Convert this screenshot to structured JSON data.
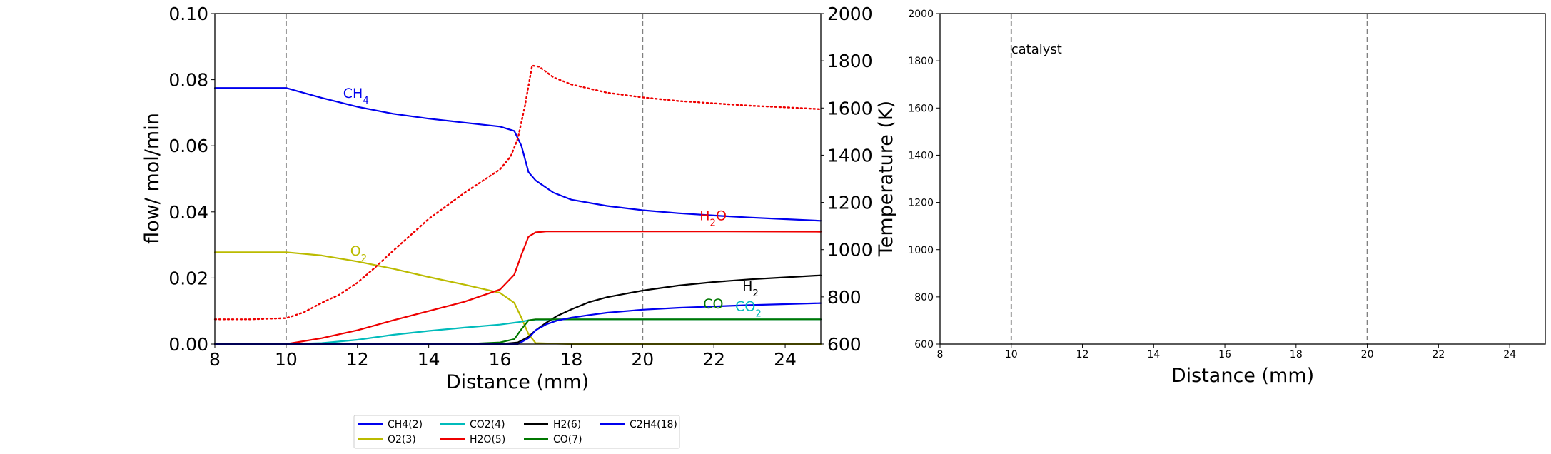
{
  "chart_data": [
    {
      "type": "line",
      "xlabel": "Distance (mm)",
      "ylabel": "flow/ mol/min",
      "y2label": "Temperature (K)",
      "xlim": [
        8,
        25
      ],
      "ylim": [
        0,
        0.1
      ],
      "y2lim": [
        600,
        2000
      ],
      "xticks": [
        "8",
        "10",
        "12",
        "14",
        "16",
        "18",
        "20",
        "22",
        "24"
      ],
      "yticks": [
        "0.00",
        "0.02",
        "0.04",
        "0.06",
        "0.08",
        "0.10"
      ],
      "y2ticks": [
        "600",
        "800",
        "1000",
        "1200",
        "1400",
        "1600",
        "1800",
        "2000"
      ],
      "vlines": [
        10,
        20
      ],
      "grid": false,
      "legend_position": "below",
      "series": [
        {
          "name": "CH4(2)",
          "color": "#0000ee",
          "x": [
            8,
            10,
            11,
            12,
            13,
            14,
            15,
            16,
            16.4,
            16.6,
            16.8,
            17,
            17.5,
            18,
            19,
            20,
            21,
            22,
            23,
            24,
            25
          ],
          "y": [
            0.0775,
            0.0775,
            0.0745,
            0.0718,
            0.0697,
            0.0682,
            0.067,
            0.0658,
            0.0645,
            0.06,
            0.052,
            0.0495,
            0.0458,
            0.0437,
            0.0418,
            0.0405,
            0.0396,
            0.0389,
            0.0383,
            0.0378,
            0.0373
          ]
        },
        {
          "name": "O2(3)",
          "color": "#bbbb00",
          "x": [
            8,
            10,
            11,
            12,
            13,
            14,
            15,
            16,
            16.4,
            16.6,
            16.8,
            17,
            18,
            25
          ],
          "y": [
            0.0278,
            0.0278,
            0.0268,
            0.025,
            0.0228,
            0.0203,
            0.018,
            0.0155,
            0.0125,
            0.008,
            0.003,
            0.0003,
            0,
            0
          ]
        },
        {
          "name": "CO2(4)",
          "color": "#00bbbb",
          "x": [
            8,
            10,
            11,
            12,
            13,
            14,
            15,
            16,
            16.5,
            16.8,
            17,
            18,
            19,
            20,
            21,
            22,
            23,
            24,
            25
          ],
          "y": [
            0,
            0,
            0.0003,
            0.0013,
            0.0028,
            0.004,
            0.005,
            0.0059,
            0.0066,
            0.0072,
            0.0074,
            0.0075,
            0.0075,
            0.0075,
            0.0075,
            0.0075,
            0.0075,
            0.0075,
            0.0075
          ]
        },
        {
          "name": "H2O(5)",
          "color": "#ee0000",
          "x": [
            8,
            10,
            11,
            12,
            13,
            14,
            15,
            16,
            16.4,
            16.6,
            16.8,
            17,
            17.3,
            18,
            20,
            22,
            25
          ],
          "y": [
            0,
            0,
            0.0018,
            0.0042,
            0.0072,
            0.01,
            0.0128,
            0.0165,
            0.021,
            0.027,
            0.0325,
            0.0338,
            0.0341,
            0.0341,
            0.0341,
            0.0341,
            0.034
          ]
        },
        {
          "name": "H2(6)",
          "color": "#000000",
          "x": [
            8,
            16,
            16.5,
            16.8,
            17,
            17.3,
            17.6,
            18,
            18.5,
            19,
            20,
            21,
            22,
            23,
            24,
            25
          ],
          "y": [
            0,
            0,
            0.0005,
            0.0022,
            0.0042,
            0.0065,
            0.0085,
            0.0105,
            0.0127,
            0.0142,
            0.0162,
            0.0177,
            0.0188,
            0.0196,
            0.0202,
            0.0208
          ]
        },
        {
          "name": "CO(7)",
          "color": "#007700",
          "x": [
            8,
            15,
            16,
            16.4,
            16.6,
            16.8,
            17,
            18,
            20,
            22,
            25
          ],
          "y": [
            0,
            0,
            0.0005,
            0.0015,
            0.0045,
            0.0072,
            0.0075,
            0.0075,
            0.0075,
            0.0075,
            0.0075
          ]
        },
        {
          "name": "C2H4(18)",
          "color": "#0000ee",
          "x": [
            8,
            16.5,
            16.8,
            17,
            17.3,
            17.6,
            18,
            18.5,
            19,
            20,
            21,
            22,
            23,
            24,
            25
          ],
          "y": [
            0,
            0,
            0.0018,
            0.0042,
            0.006,
            0.0071,
            0.008,
            0.0088,
            0.0095,
            0.0104,
            0.011,
            0.0114,
            0.0118,
            0.0121,
            0.0124
          ]
        },
        {
          "name": "Temperature",
          "color": "#ee0000",
          "axis": "y2",
          "style": "dotted",
          "x": [
            8,
            9,
            10,
            10.5,
            11,
            11.5,
            12,
            12.5,
            13,
            14,
            15,
            16,
            16.3,
            16.5,
            16.7,
            16.9,
            17.1,
            17.5,
            18,
            19,
            20,
            21,
            22,
            23,
            24,
            25
          ],
          "y": [
            705,
            705,
            710,
            735,
            775,
            810,
            860,
            925,
            995,
            1130,
            1240,
            1340,
            1395,
            1470,
            1610,
            1780,
            1775,
            1730,
            1700,
            1665,
            1645,
            1630,
            1620,
            1610,
            1603,
            1595
          ]
        }
      ],
      "annotations": [
        {
          "text": "CH",
          "sub": "4",
          "x": 11.6,
          "y": 0.0745,
          "color": "#0000ee"
        },
        {
          "text": "O",
          "sub": "2",
          "x": 11.8,
          "y": 0.0268,
          "color": "#bbbb00"
        },
        {
          "text": "H",
          "sub": "2",
          "suffix": "O",
          "x": 21.6,
          "y": 0.0375,
          "color": "#ee0000"
        },
        {
          "text": "H",
          "sub": "2",
          "x": 22.8,
          "y": 0.0162,
          "color": "#000000"
        },
        {
          "text": "CO",
          "x": 21.7,
          "y": 0.0108,
          "color": "#007700"
        },
        {
          "text": "CO",
          "sub": "2",
          "x": 22.6,
          "y": 0.01,
          "color": "#00bbbb"
        }
      ]
    },
    {
      "type": "line",
      "xlabel": "Distance (mm)",
      "xlim": [
        8,
        25
      ],
      "ylim": [
        600,
        2000
      ],
      "xticks": [
        "8",
        "10",
        "12",
        "14",
        "16",
        "18",
        "20",
        "22",
        "24"
      ],
      "yticks": [
        "600",
        "800",
        "1000",
        "1200",
        "1400",
        "1600",
        "1800",
        "2000"
      ],
      "vlines": [
        10,
        20
      ],
      "grid": false,
      "series": [],
      "annotations": [
        {
          "text": "catalyst",
          "x": 10.0,
          "y": 1830,
          "color": "#000000"
        }
      ]
    }
  ],
  "legend": {
    "items": [
      {
        "label": "CH4(2)",
        "color": "#0000ee"
      },
      {
        "label": "O2(3)",
        "color": "#bbbb00"
      },
      {
        "label": "CO2(4)",
        "color": "#00bbbb"
      },
      {
        "label": "H2O(5)",
        "color": "#ee0000"
      },
      {
        "label": "H2(6)",
        "color": "#000000"
      },
      {
        "label": "CO(7)",
        "color": "#007700"
      },
      {
        "label": "C2H4(18)",
        "color": "#0000ee"
      }
    ]
  }
}
